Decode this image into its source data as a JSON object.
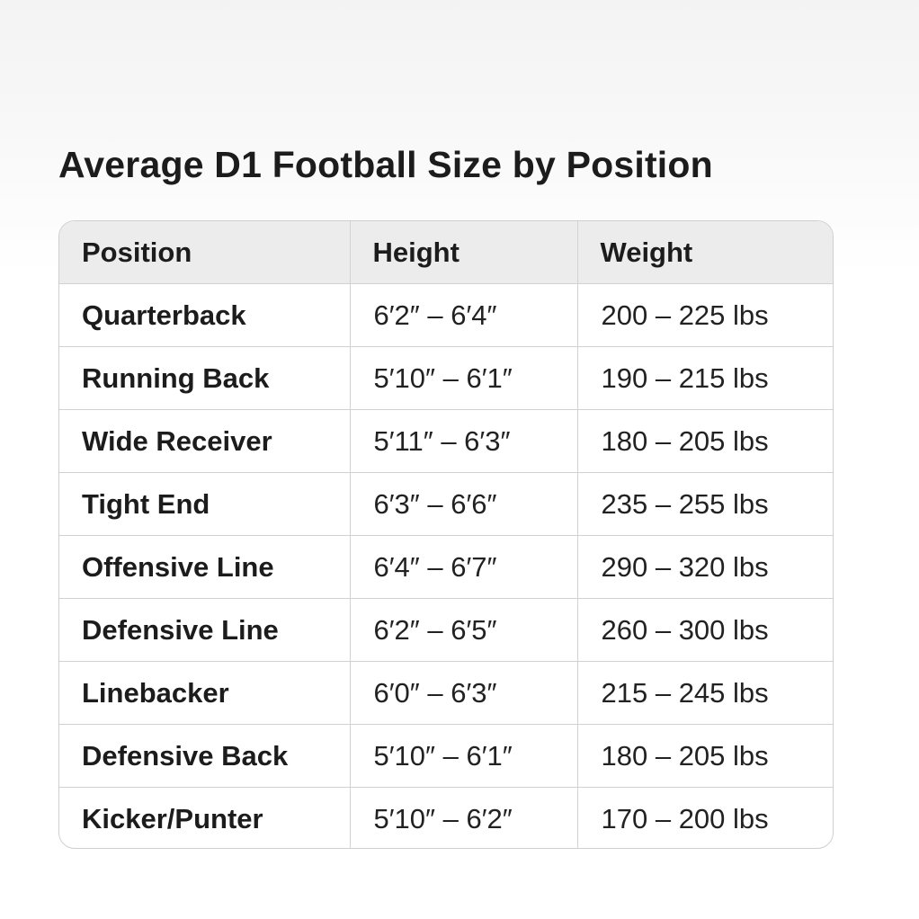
{
  "chart_data": {
    "type": "table",
    "title": "Average D1 Football Size by Position",
    "columns": [
      "Position",
      "Height",
      "Weight"
    ],
    "rows": [
      {
        "position": "Quarterback",
        "height": "6′2″ – 6′4″",
        "weight": "200 – 225 lbs"
      },
      {
        "position": "Running Back",
        "height": "5′10″ – 6′1″",
        "weight": "190 – 215 lbs"
      },
      {
        "position": "Wide Receiver",
        "height": "5′11″ – 6′3″",
        "weight": "180 – 205 lbs"
      },
      {
        "position": "Tight End",
        "height": "6′3″ – 6′6″",
        "weight": "235 – 255 lbs"
      },
      {
        "position": "Offensive Line",
        "height": "6′4″ – 6′7″",
        "weight": "290 – 320 lbs"
      },
      {
        "position": "Defensive Line",
        "height": "6′2″ – 6′5″",
        "weight": "260 – 300 lbs"
      },
      {
        "position": "Linebacker",
        "height": "6′0″ – 6′3″",
        "weight": "215 – 245 lbs"
      },
      {
        "position": "Defensive Back",
        "height": "5′10″ – 6′1″",
        "weight": "180 – 205 lbs"
      },
      {
        "position": "Kicker/Punter",
        "height": "5′10″ – 6′2″",
        "weight": "170 – 200 lbs"
      }
    ],
    "colors": {
      "header_background": "#ececec",
      "border": "#d2d2d2",
      "text": "#1c1c1c"
    }
  }
}
